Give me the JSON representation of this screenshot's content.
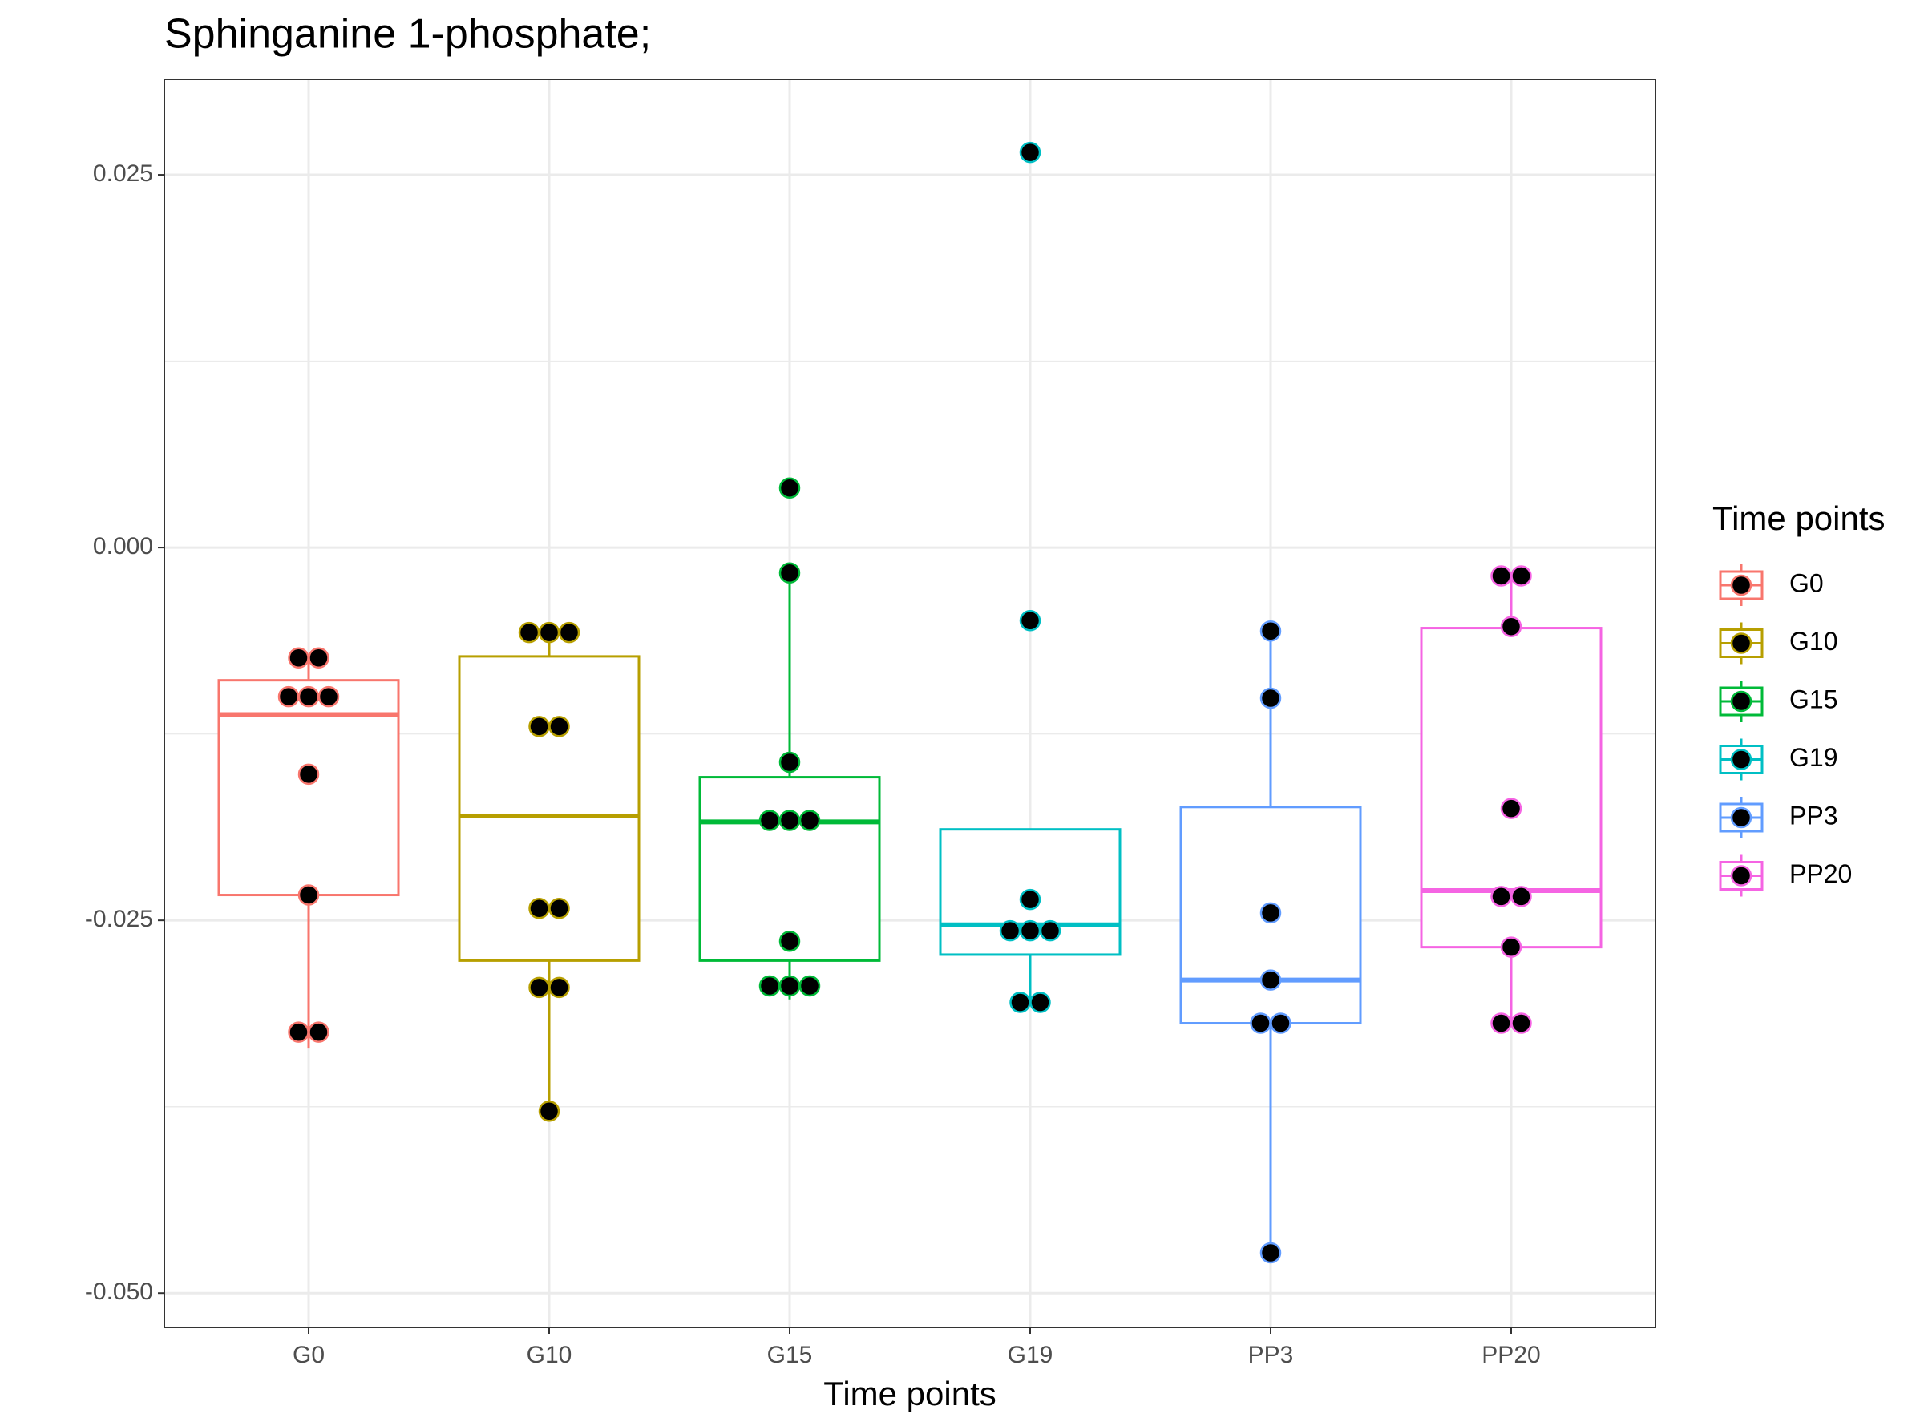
{
  "chart_data": {
    "type": "box",
    "title": "Sphinganine 1-phosphate;",
    "x_label": "Time points",
    "legend_title": "Time points",
    "categories": [
      "G0",
      "G10",
      "G15",
      "G19",
      "PP3",
      "PP20"
    ],
    "ylim": [
      -0.0523,
      0.0314
    ],
    "yticks": [
      {
        "value": -0.05,
        "label": "-0.050"
      },
      {
        "value": -0.025,
        "label": "-0.025"
      },
      {
        "value": 0,
        "label": "0.000"
      },
      {
        "value": 0.025,
        "label": "0.025"
      }
    ],
    "minor_yticks": [
      -0.0375,
      -0.0125,
      0.0125
    ],
    "grid": true,
    "legend": "right",
    "series": [
      {
        "name": "G0",
        "color": "#F8766D",
        "box": [
          -0.0336,
          -0.0233,
          -0.0112,
          -0.0089,
          -0.0074
        ],
        "values": [
          -0.0074,
          -0.0074,
          -0.01,
          -0.01,
          -0.01,
          -0.0152,
          -0.0233,
          -0.0325,
          -0.0325
        ]
      },
      {
        "name": "G10",
        "color": "#B79F00",
        "box": [
          -0.0378,
          -0.0277,
          -0.018,
          -0.0073,
          -0.0057
        ],
        "values": [
          -0.0057,
          -0.0057,
          -0.0057,
          -0.012,
          -0.012,
          -0.0242,
          -0.0242,
          -0.0295,
          -0.0295,
          -0.0378
        ]
      },
      {
        "name": "G15",
        "color": "#00BA38",
        "box": [
          -0.0303,
          -0.0277,
          -0.0184,
          -0.0154,
          -0.0017
        ],
        "values": [
          0.004,
          -0.0017,
          -0.0144,
          -0.0183,
          -0.0183,
          -0.0183,
          -0.0264,
          -0.0294,
          -0.0294,
          -0.0294
        ]
      },
      {
        "name": "G19",
        "color": "#00BFC4",
        "box": [
          -0.0305,
          -0.0273,
          -0.0253,
          -0.0189,
          -0.0189
        ],
        "values": [
          0.0265,
          -0.0049,
          -0.0236,
          -0.0257,
          -0.0257,
          -0.0257,
          -0.0305,
          -0.0305
        ]
      },
      {
        "name": "PP3",
        "color": "#619CFF",
        "box": [
          -0.0473,
          -0.0319,
          -0.029,
          -0.0174,
          -0.0056
        ],
        "values": [
          -0.0056,
          -0.0101,
          -0.0245,
          -0.029,
          -0.0319,
          -0.0319,
          -0.0473
        ]
      },
      {
        "name": "PP20",
        "color": "#F564E3",
        "box": [
          -0.0319,
          -0.0268,
          -0.023,
          -0.0054,
          -0.0019
        ],
        "values": [
          -0.0019,
          -0.0019,
          -0.0053,
          -0.0175,
          -0.0234,
          -0.0234,
          -0.0268,
          -0.0319,
          -0.0319
        ]
      }
    ]
  }
}
